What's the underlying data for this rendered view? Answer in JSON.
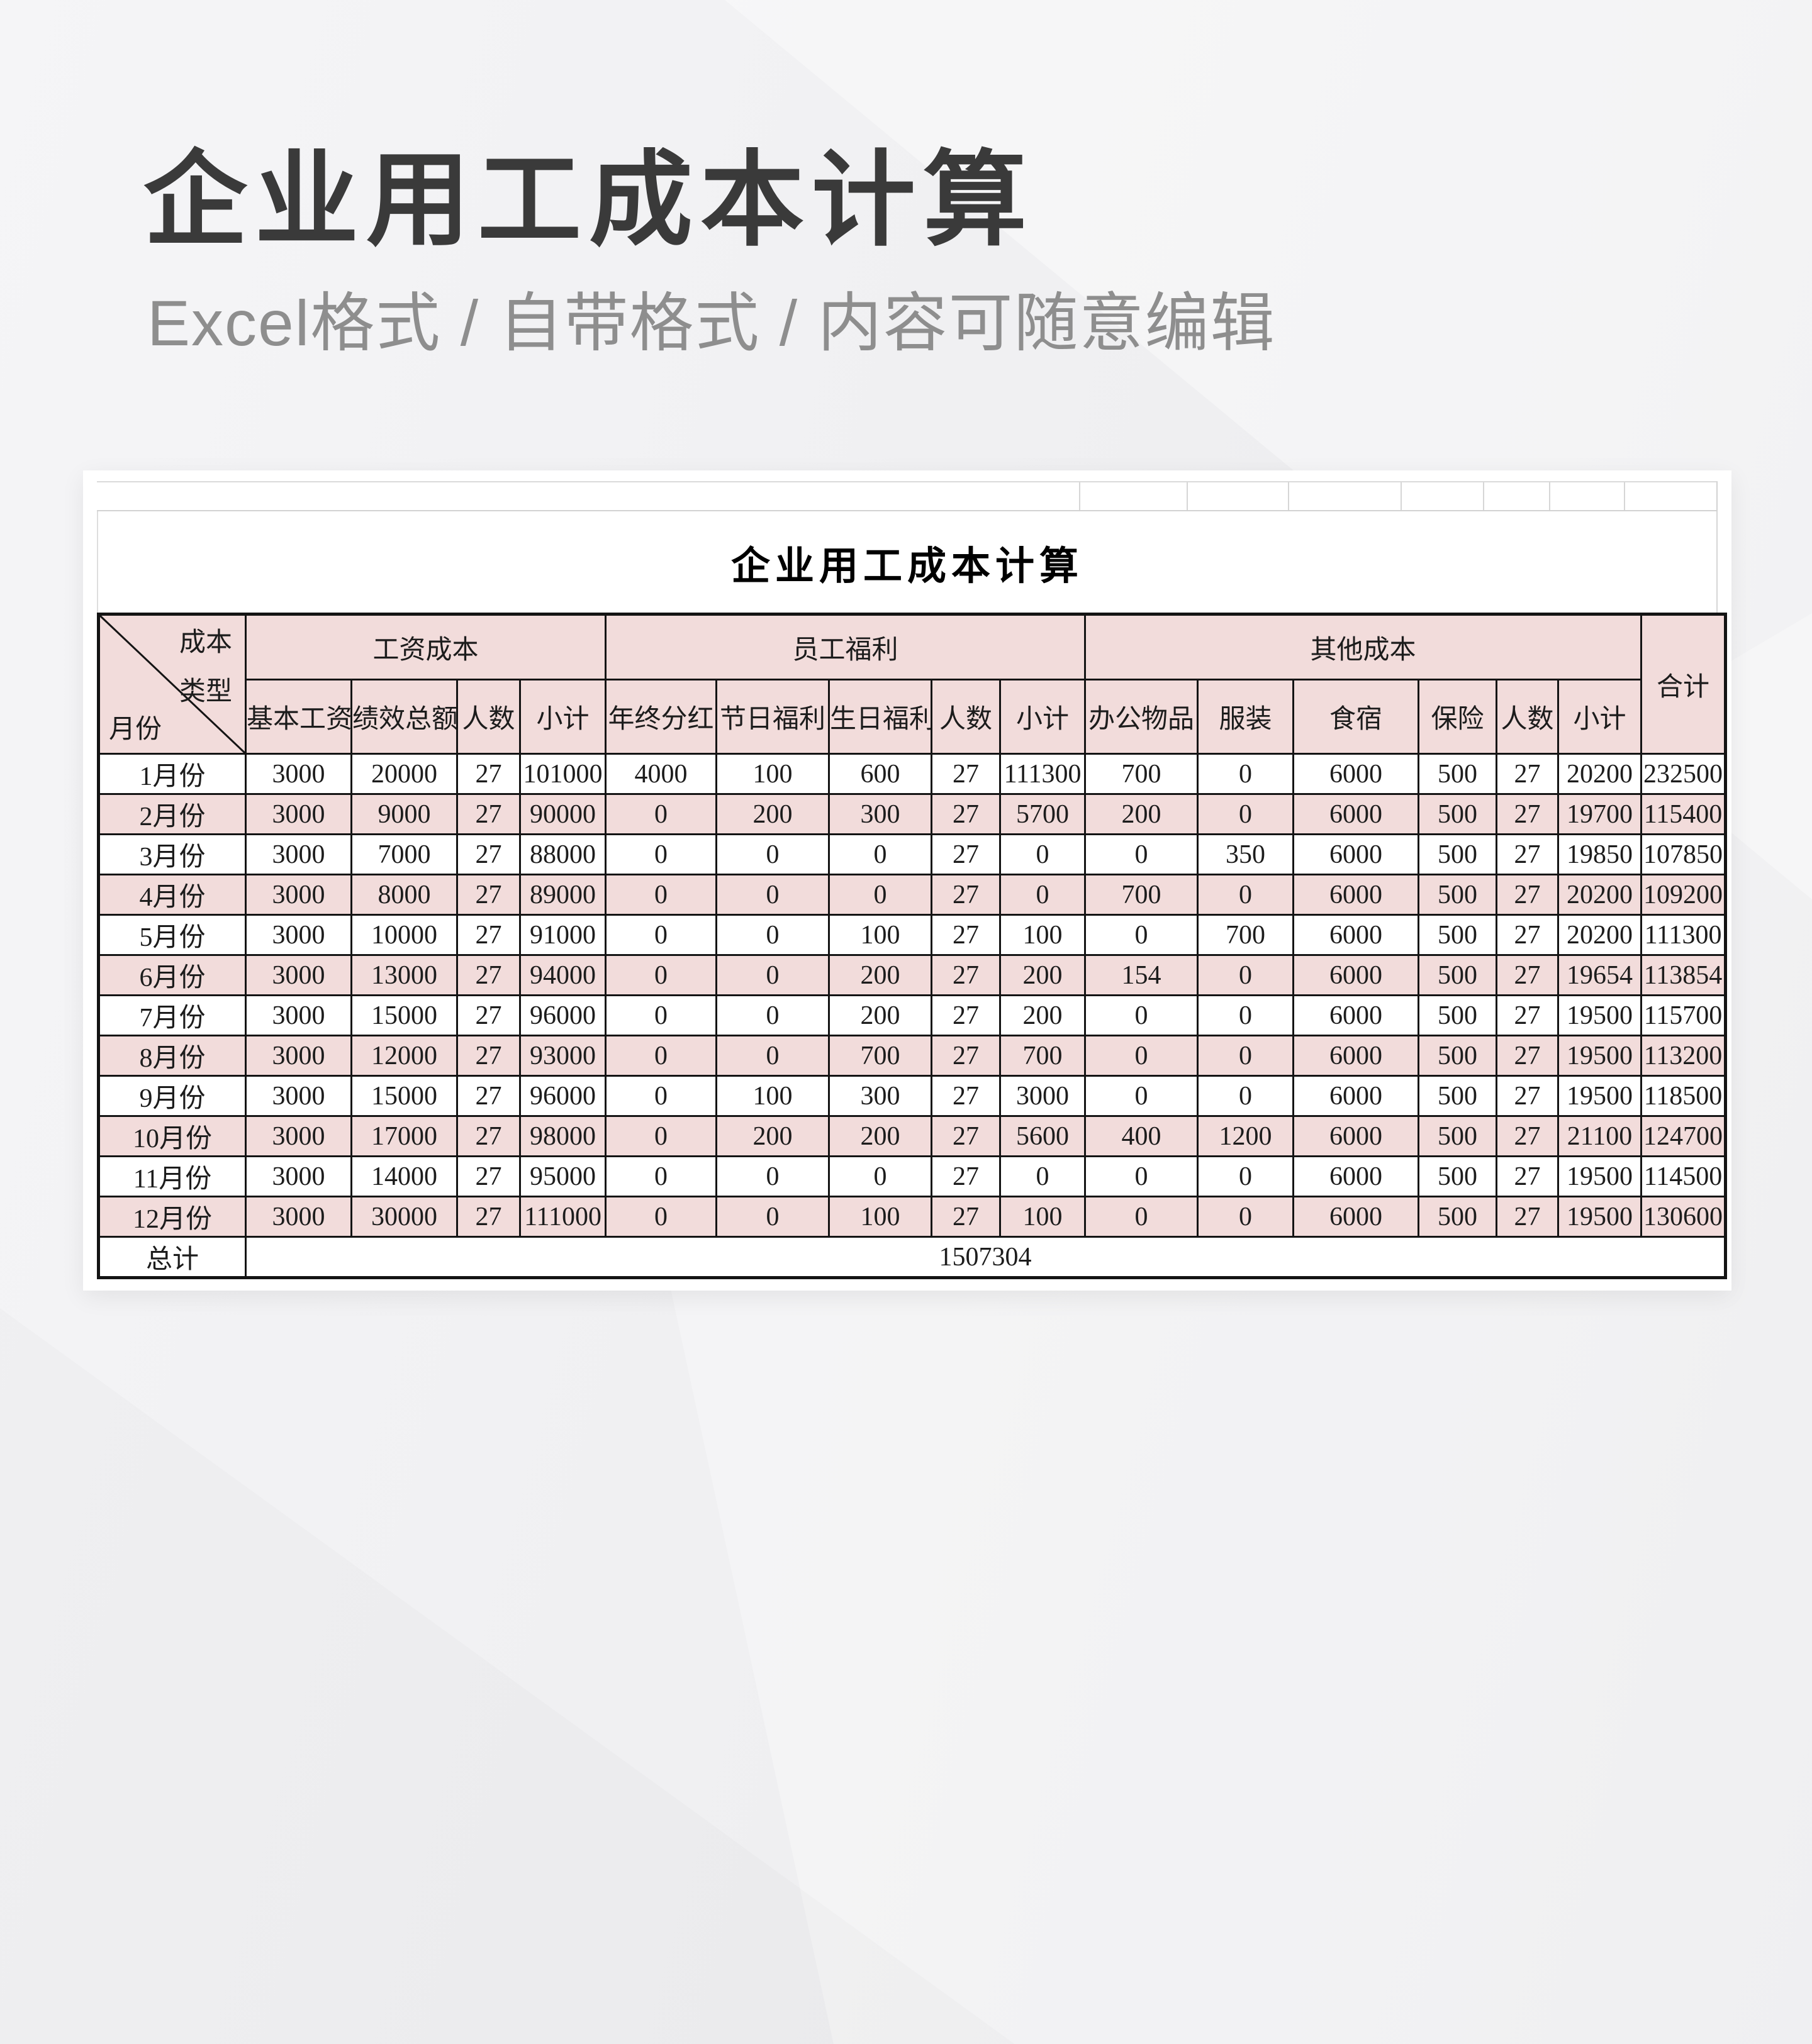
{
  "page": {
    "title": "企业用工成本计算",
    "subtitle": "Excel格式 / 自带格式 / 内容可随意编辑"
  },
  "sheet": {
    "title": "企业用工成本计算"
  },
  "table": {
    "corner": {
      "top_label_line1": "成本",
      "top_label_line2": "类型",
      "bottom_label": "月份"
    },
    "groups": [
      {
        "label": "工资成本",
        "cols": [
          "基本工资",
          "绩效总额",
          "人数",
          "小计"
        ]
      },
      {
        "label": "员工福利",
        "cols": [
          "年终分红",
          "节日福利",
          "生日福利",
          "人数",
          "小计"
        ]
      },
      {
        "label": "其他成本",
        "cols": [
          "办公物品",
          "服装",
          "食宿",
          "保险",
          "人数",
          "小计"
        ]
      }
    ],
    "total_col_label": "合计",
    "rows": [
      {
        "month": "1月份",
        "values": [
          3000,
          20000,
          27,
          101000,
          4000,
          100,
          600,
          27,
          111300,
          700,
          0,
          6000,
          500,
          27,
          20200,
          232500
        ]
      },
      {
        "month": "2月份",
        "values": [
          3000,
          9000,
          27,
          90000,
          0,
          200,
          300,
          27,
          5700,
          200,
          0,
          6000,
          500,
          27,
          19700,
          115400
        ]
      },
      {
        "month": "3月份",
        "values": [
          3000,
          7000,
          27,
          88000,
          0,
          0,
          0,
          27,
          0,
          0,
          350,
          6000,
          500,
          27,
          19850,
          107850
        ]
      },
      {
        "month": "4月份",
        "values": [
          3000,
          8000,
          27,
          89000,
          0,
          0,
          0,
          27,
          0,
          700,
          0,
          6000,
          500,
          27,
          20200,
          109200
        ]
      },
      {
        "month": "5月份",
        "values": [
          3000,
          10000,
          27,
          91000,
          0,
          0,
          100,
          27,
          100,
          0,
          700,
          6000,
          500,
          27,
          20200,
          111300
        ]
      },
      {
        "month": "6月份",
        "values": [
          3000,
          13000,
          27,
          94000,
          0,
          0,
          200,
          27,
          200,
          154,
          0,
          6000,
          500,
          27,
          19654,
          113854
        ]
      },
      {
        "month": "7月份",
        "values": [
          3000,
          15000,
          27,
          96000,
          0,
          0,
          200,
          27,
          200,
          0,
          0,
          6000,
          500,
          27,
          19500,
          115700
        ]
      },
      {
        "month": "8月份",
        "values": [
          3000,
          12000,
          27,
          93000,
          0,
          0,
          700,
          27,
          700,
          0,
          0,
          6000,
          500,
          27,
          19500,
          113200
        ]
      },
      {
        "month": "9月份",
        "values": [
          3000,
          15000,
          27,
          96000,
          0,
          100,
          300,
          27,
          3000,
          0,
          0,
          6000,
          500,
          27,
          19500,
          118500
        ]
      },
      {
        "month": "10月份",
        "values": [
          3000,
          17000,
          27,
          98000,
          0,
          200,
          200,
          27,
          5600,
          400,
          1200,
          6000,
          500,
          27,
          21100,
          124700
        ]
      },
      {
        "month": "11月份",
        "values": [
          3000,
          14000,
          27,
          95000,
          0,
          0,
          0,
          27,
          0,
          0,
          0,
          6000,
          500,
          27,
          19500,
          114500
        ]
      },
      {
        "month": "12月份",
        "values": [
          3000,
          30000,
          27,
          111000,
          0,
          0,
          100,
          27,
          100,
          0,
          0,
          6000,
          500,
          27,
          19500,
          130600
        ]
      }
    ],
    "grand_total_label": "总计",
    "grand_total_value": "1507304"
  },
  "colors": {
    "header_fill": "#f2dcdb",
    "alt_row_fill": "#f2dcdb",
    "table_border": "#141414",
    "page_title_text": "#3a3a3a",
    "subtitle_text": "#8e8e8e"
  }
}
